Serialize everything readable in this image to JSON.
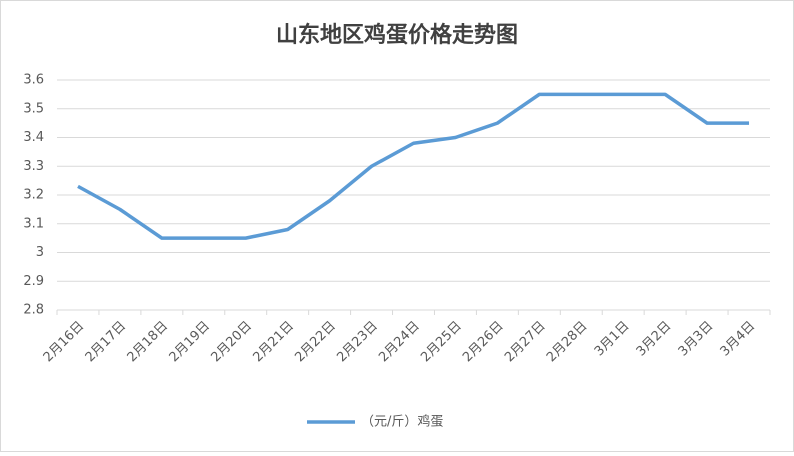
{
  "chart_data": {
    "type": "line",
    "title": "山东地区鸡蛋价格走势图",
    "categories": [
      "2月16日",
      "2月17日",
      "2月18日",
      "2月19日",
      "2月20日",
      "2月21日",
      "2月22日",
      "2月23日",
      "2月24日",
      "2月25日",
      "2月26日",
      "2月27日",
      "2月28日",
      "3月1日",
      "3月2日",
      "3月3日",
      "3月4日"
    ],
    "series": [
      {
        "name": "（元/斤）鸡蛋",
        "color": "#5b9bd5",
        "values": [
          3.23,
          3.15,
          3.05,
          3.05,
          3.05,
          3.08,
          3.18,
          3.3,
          3.38,
          3.4,
          3.45,
          3.55,
          3.55,
          3.55,
          3.55,
          3.45,
          3.45
        ]
      }
    ],
    "ylim": [
      2.8,
      3.6
    ],
    "yticks": [
      2.8,
      2.9,
      3,
      3.1,
      3.2,
      3.3,
      3.4,
      3.5,
      3.6
    ],
    "grid": true,
    "legend": "bottom"
  }
}
